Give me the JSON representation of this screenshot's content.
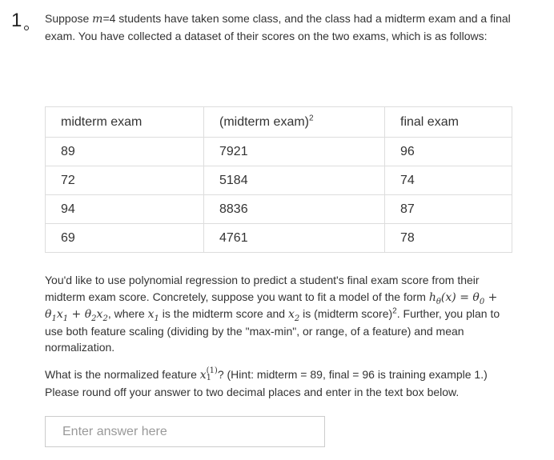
{
  "question": {
    "number": "1",
    "intro_pre": "Suppose ",
    "intro_var": "m",
    "intro_post": "=4 students have taken some class, and the class had a midterm exam and a final exam. You have collected a dataset of their scores on the two exams, which is as follows:"
  },
  "table": {
    "headers": [
      "midterm exam",
      "(midterm exam)",
      "final exam"
    ],
    "header_superscript": "2",
    "rows": [
      [
        "89",
        "7921",
        "96"
      ],
      [
        "72",
        "5184",
        "74"
      ],
      [
        "94",
        "8836",
        "87"
      ],
      [
        "69",
        "4761",
        "78"
      ]
    ]
  },
  "body": {
    "p2_a": "You'd like to use polynomial regression to predict a student's final exam score from their midterm exam score. Concretely, suppose you want to fit a model of the form ",
    "p2_b": ", where ",
    "p2_c": " is the midterm score and ",
    "p2_d": " is (midterm score)",
    "p2_e": ". Further, you plan to use both feature scaling (dividing by the \"max-min\", or range, of a feature) and mean normalization.",
    "p3_a": "What is the normalized feature ",
    "p3_b": "? (Hint: midterm = 89, final = 96 is training example 1.) Please round off your answer to two decimal places and enter in the text box below."
  },
  "answer": {
    "placeholder": "Enter answer here",
    "value": ""
  }
}
